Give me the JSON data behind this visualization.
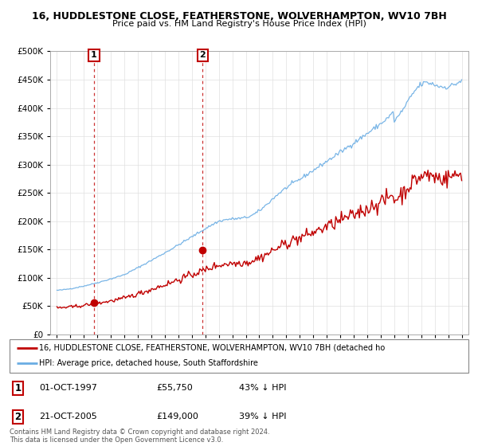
{
  "title1": "16, HUDDLESTONE CLOSE, FEATHERSTONE, WOLVERHAMPTON, WV10 7BH",
  "title2": "Price paid vs. HM Land Registry's House Price Index (HPI)",
  "legend_line1": "16, HUDDLESTONE CLOSE, FEATHERSTONE, WOLVERHAMPTON, WV10 7BH (detached ho",
  "legend_line2": "HPI: Average price, detached house, South Staffordshire",
  "footer": "Contains HM Land Registry data © Crown copyright and database right 2024.\nThis data is licensed under the Open Government Licence v3.0.",
  "annotation1_label": "1",
  "annotation1_date": "01-OCT-1997",
  "annotation1_price": "£55,750",
  "annotation1_hpi": "43% ↓ HPI",
  "annotation2_label": "2",
  "annotation2_date": "21-OCT-2005",
  "annotation2_price": "£149,000",
  "annotation2_hpi": "39% ↓ HPI",
  "sale1_x": 1997.75,
  "sale1_y": 55750,
  "sale2_x": 2005.8,
  "sale2_y": 149000,
  "hpi_color": "#6aade4",
  "price_color": "#c00000",
  "ylim": [
    0,
    500000
  ],
  "xlim_start": 1994.5,
  "xlim_end": 2025.5,
  "yticks": [
    0,
    50000,
    100000,
    150000,
    200000,
    250000,
    300000,
    350000,
    400000,
    450000,
    500000
  ],
  "xticks": [
    1995,
    1996,
    1997,
    1998,
    1999,
    2000,
    2001,
    2002,
    2003,
    2004,
    2005,
    2006,
    2007,
    2008,
    2009,
    2010,
    2011,
    2012,
    2013,
    2014,
    2015,
    2016,
    2017,
    2018,
    2019,
    2020,
    2021,
    2022,
    2023,
    2024,
    2025
  ],
  "bg_color": "#ffffff",
  "grid_color": "#e0e0e0"
}
